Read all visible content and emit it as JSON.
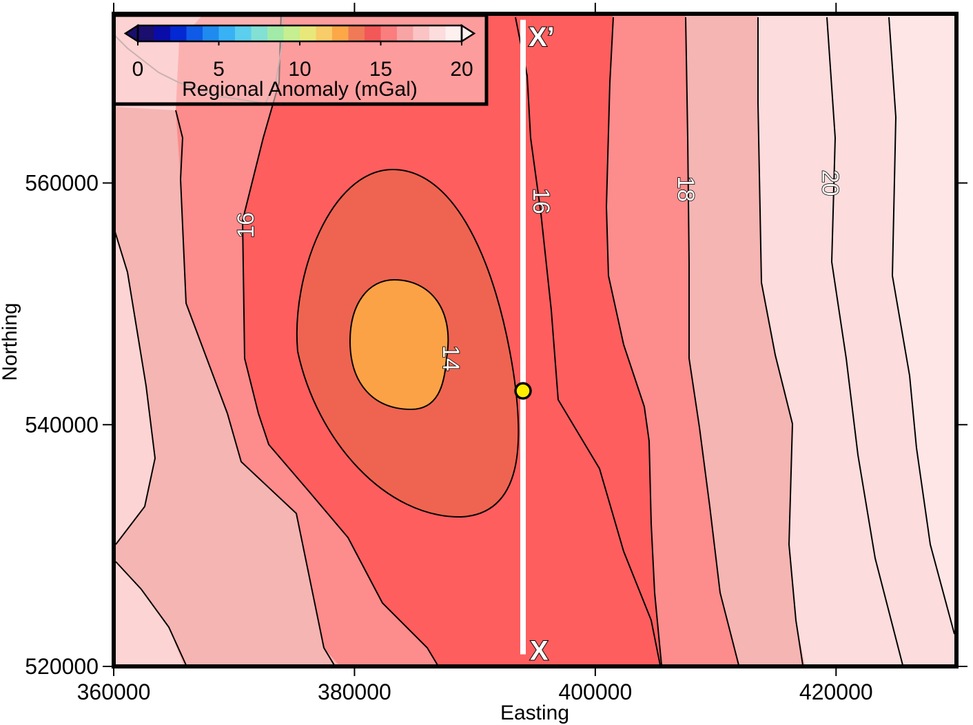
{
  "chart_data": {
    "type": "heatmap",
    "xlabel": "Easting",
    "ylabel": "Northing",
    "xlim": [
      360000,
      430000
    ],
    "ylim": [
      520000,
      574000
    ],
    "x_ticks": [
      "360000",
      "380000",
      "400000",
      "420000"
    ],
    "y_ticks": [
      "520000",
      "540000",
      "560000"
    ],
    "x_tick_values": [
      360000,
      380000,
      400000,
      420000
    ],
    "y_tick_values": [
      520000,
      540000,
      560000
    ],
    "grid": false,
    "colorbar": {
      "title": "Regional Anomaly (mGal)",
      "tick_labels": [
        "0",
        "5",
        "10",
        "15",
        "20"
      ],
      "range": [
        0,
        20
      ],
      "placement": "top-left",
      "colors": [
        "#1a0e6e",
        "#0a0ca8",
        "#0428d2",
        "#0f5ae6",
        "#1f8af0",
        "#38b2f5",
        "#5ccfee",
        "#82e0d4",
        "#a2eaa8",
        "#c5ef90",
        "#e8e87a",
        "#f8cc68",
        "#fca848",
        "#f07a58",
        "#f25858",
        "#fa7e7e",
        "#f8a4a4",
        "#fac4c4",
        "#fcdcdc",
        "#fff0f0"
      ]
    },
    "contour_labels": [
      {
        "value": "14",
        "x": 388000,
        "y": 545500
      },
      {
        "value": "16",
        "x": 371000,
        "y": 556500
      },
      {
        "value": "16",
        "x": 395500,
        "y": 558500
      },
      {
        "value": "18",
        "x": 407500,
        "y": 559500
      },
      {
        "value": "20",
        "x": 419500,
        "y": 560000
      }
    ],
    "profile": {
      "start_label": "X",
      "end_label": "X’",
      "easting": 394000,
      "northing_start": 521000,
      "northing_end": 573500,
      "color": "#ffffff"
    },
    "point": {
      "easting": 394000,
      "northing": 542800,
      "color": "#ffee00"
    },
    "band_colors": [
      "#fdd4d4",
      "#f5b5b2",
      "#fd8c8c",
      "#fe5e5e",
      "#ee6450",
      "#fca246",
      "#fee6e6"
    ]
  }
}
